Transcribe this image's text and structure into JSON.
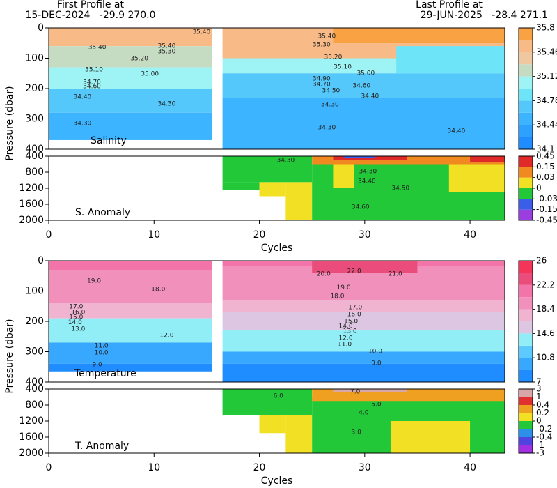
{
  "header": {
    "first_label": "First Profile at",
    "first_info": "15-DEC-2024   -29.9 270.0",
    "last_label": "Last Profile at",
    "last_info": "29-JUN-2025   -28.4 271.1"
  },
  "chart_data": [
    {
      "type": "heatmap",
      "label": "Salinity",
      "ylabel": "Pressure (dbar)",
      "xlim": [
        0,
        43.3
      ],
      "ylim": [
        0,
        400
      ],
      "yticks": [
        0,
        100,
        200,
        300,
        400
      ],
      "colorbar": {
        "levels": [
          34.1,
          34.27,
          34.44,
          34.61,
          34.78,
          34.95,
          35.12,
          35.29,
          35.46,
          35.63,
          35.8
        ],
        "colors": [
          "#1f8cff",
          "#2ea0ff",
          "#3db4ff",
          "#55c8fb",
          "#6ee4f8",
          "#9ef4f4",
          "#c6dcc2",
          "#efc8a2",
          "#f8ba86",
          "#f8a244"
        ],
        "ticks": [
          35.8,
          35.46,
          35.12,
          34.78,
          34.44,
          34.1
        ]
      },
      "cells": [
        {
          "x": [
            0,
            15.5
          ],
          "p": [
            0,
            60
          ],
          "value": 35.5
        },
        {
          "x": [
            0,
            15.5
          ],
          "p": [
            60,
            130
          ],
          "value": 35.2
        },
        {
          "x": [
            0,
            15.5
          ],
          "p": [
            130,
            200
          ],
          "value": 35.0
        },
        {
          "x": [
            0,
            15.5
          ],
          "p": [
            200,
            280
          ],
          "value": 34.7
        },
        {
          "x": [
            0,
            15.5
          ],
          "p": [
            280,
            370
          ],
          "value": 34.5
        },
        {
          "x": [
            16.5,
            43.3
          ],
          "p": [
            0,
            100
          ],
          "value": 35.5
        },
        {
          "x": [
            16.5,
            43.3
          ],
          "p": [
            100,
            150
          ],
          "value": 35.0
        },
        {
          "x": [
            16.5,
            43.3
          ],
          "p": [
            150,
            230
          ],
          "value": 34.7
        },
        {
          "x": [
            16.5,
            43.3
          ],
          "p": [
            230,
            400
          ],
          "value": 34.5
        },
        {
          "x": [
            33,
            43.3
          ],
          "p": [
            60,
            150
          ],
          "value": 34.9
        },
        {
          "x": [
            27,
            43.3
          ],
          "p": [
            0,
            50
          ],
          "value": 35.7
        }
      ],
      "annotations": [
        {
          "text": "35.40",
          "x": 14.5,
          "y": 14
        },
        {
          "text": "35.40",
          "x": 4.6,
          "y": 64
        },
        {
          "text": "35.40",
          "x": 11.2,
          "y": 60
        },
        {
          "text": "35.30",
          "x": 11.2,
          "y": 78
        },
        {
          "text": "35.20",
          "x": 8.6,
          "y": 101
        },
        {
          "text": "35.10",
          "x": 4.3,
          "y": 138
        },
        {
          "text": "35.00",
          "x": 9.6,
          "y": 152
        },
        {
          "text": "34.70",
          "x": 4.1,
          "y": 179
        },
        {
          "text": "34.60",
          "x": 4.1,
          "y": 193
        },
        {
          "text": "34.40",
          "x": 3.2,
          "y": 228
        },
        {
          "text": "34.30",
          "x": 11.2,
          "y": 251
        },
        {
          "text": "34.30",
          "x": 3.2,
          "y": 315
        },
        {
          "text": "35.40",
          "x": 26.4,
          "y": 28
        },
        {
          "text": "35.30",
          "x": 25.9,
          "y": 55
        },
        {
          "text": "35.20",
          "x": 27,
          "y": 97
        },
        {
          "text": "35.10",
          "x": 27.9,
          "y": 129
        },
        {
          "text": "35.00",
          "x": 30.1,
          "y": 149
        },
        {
          "text": "34.90",
          "x": 25.9,
          "y": 168
        },
        {
          "text": "34.70",
          "x": 25.9,
          "y": 186
        },
        {
          "text": "34.60",
          "x": 29.7,
          "y": 191
        },
        {
          "text": "34.50",
          "x": 26.8,
          "y": 207
        },
        {
          "text": "34.40",
          "x": 30.5,
          "y": 225
        },
        {
          "text": "34.30",
          "x": 26.7,
          "y": 253
        },
        {
          "text": "34.30",
          "x": 26.4,
          "y": 329
        },
        {
          "text": "34.40",
          "x": 38.7,
          "y": 340
        }
      ]
    },
    {
      "type": "heatmap",
      "label": "S. Anomaly",
      "xlabel": "Cycles",
      "xlim": [
        0,
        43.3
      ],
      "ylim": [
        400,
        2000
      ],
      "yticks": [
        400,
        800,
        1200,
        1600,
        2000
      ],
      "xticks": [
        0,
        10,
        20,
        30,
        40
      ],
      "colorbar": {
        "levels": [
          -0.45,
          -0.15,
          -0.03,
          0,
          0.03,
          0.15,
          0.45
        ],
        "colors": [
          "#9a3ee0",
          "#3a5ee8",
          "#22c838",
          "#f2e024",
          "#f08a20",
          "#e02a2a"
        ],
        "ticks": [
          0.45,
          0.15,
          0.03,
          0,
          -0.03,
          -0.15,
          -0.45
        ]
      },
      "cells": [
        {
          "x": [
            16.5,
            25
          ],
          "p": [
            400,
            1050
          ],
          "value": -0.01
        },
        {
          "x": [
            16.5,
            20
          ],
          "p": [
            1050,
            1250
          ],
          "value": -0.01
        },
        {
          "x": [
            20,
            22.5
          ],
          "p": [
            1050,
            1400
          ],
          "value": 0.01
        },
        {
          "x": [
            22.5,
            25
          ],
          "p": [
            1050,
            2000
          ],
          "value": 0.01
        },
        {
          "x": [
            25,
            43.3
          ],
          "p": [
            600,
            2000
          ],
          "value": -0.01
        },
        {
          "x": [
            27,
            29
          ],
          "p": [
            600,
            1200
          ],
          "value": 0.01
        },
        {
          "x": [
            38,
            43.3
          ],
          "p": [
            600,
            1300
          ],
          "value": 0.01
        },
        {
          "x": [
            25,
            43.3
          ],
          "p": [
            400,
            600
          ],
          "value": 0.05
        },
        {
          "x": [
            27,
            34
          ],
          "p": [
            400,
            500
          ],
          "value": 0.2
        },
        {
          "x": [
            40,
            43.3
          ],
          "p": [
            400,
            550
          ],
          "value": 0.2
        },
        {
          "x": [
            28,
            31
          ],
          "p": [
            400,
            450
          ],
          "value": -0.1
        }
      ],
      "annotations": [
        {
          "text": "34.30",
          "x": 22.5,
          "y": 504
        },
        {
          "text": "34.30",
          "x": 30.3,
          "y": 783
        },
        {
          "text": "34.40",
          "x": 30.2,
          "y": 1026
        },
        {
          "text": "34.50",
          "x": 33.4,
          "y": 1200
        },
        {
          "text": "34.60",
          "x": 29.6,
          "y": 1670
        }
      ]
    },
    {
      "type": "heatmap",
      "label": "Temperature",
      "ylabel": "Pressure (dbar)",
      "xlim": [
        0,
        43.3
      ],
      "ylim": [
        0,
        400
      ],
      "yticks": [
        0,
        100,
        200,
        300,
        400
      ],
      "colorbar": {
        "levels": [
          7,
          8.9,
          10.8,
          12.7,
          14.6,
          16.5,
          18.4,
          20.3,
          22.2,
          24.1,
          26
        ],
        "colors": [
          "#1f8cff",
          "#38a8ff",
          "#5ccaff",
          "#92eef6",
          "#dcc6e2",
          "#f0b4d0",
          "#f290bc",
          "#f274a8",
          "#ea4c7c",
          "#f43458"
        ],
        "ticks": [
          26,
          22.2,
          18.4,
          14.6,
          10.8,
          7
        ]
      },
      "cells": [
        {
          "x": [
            0,
            15.5
          ],
          "p": [
            0,
            30
          ],
          "value": 21
        },
        {
          "x": [
            0,
            15.5
          ],
          "p": [
            30,
            140
          ],
          "value": 19.5
        },
        {
          "x": [
            0,
            15.5
          ],
          "p": [
            140,
            190
          ],
          "value": 17
        },
        {
          "x": [
            0,
            15.5
          ],
          "p": [
            190,
            270
          ],
          "value": 13.5
        },
        {
          "x": [
            0,
            15.5
          ],
          "p": [
            270,
            340
          ],
          "value": 10
        },
        {
          "x": [
            0,
            15.5
          ],
          "p": [
            340,
            365
          ],
          "value": 8
        },
        {
          "x": [
            16.5,
            43.3
          ],
          "p": [
            0,
            20
          ],
          "value": 21
        },
        {
          "x": [
            16.5,
            43.3
          ],
          "p": [
            20,
            130
          ],
          "value": 19.5
        },
        {
          "x": [
            16.5,
            43.3
          ],
          "p": [
            130,
            170
          ],
          "value": 17
        },
        {
          "x": [
            16.5,
            43.3
          ],
          "p": [
            170,
            230
          ],
          "value": 15.5
        },
        {
          "x": [
            16.5,
            43.3
          ],
          "p": [
            230,
            300
          ],
          "value": 13
        },
        {
          "x": [
            16.5,
            43.3
          ],
          "p": [
            300,
            340
          ],
          "value": 10
        },
        {
          "x": [
            16.5,
            43.3
          ],
          "p": [
            340,
            400
          ],
          "value": 8
        },
        {
          "x": [
            25,
            35
          ],
          "p": [
            0,
            40
          ],
          "value": 23
        }
      ],
      "annotations": [
        {
          "text": "19.0",
          "x": 4.3,
          "y": 67
        },
        {
          "text": "18.0",
          "x": 10.4,
          "y": 94
        },
        {
          "text": "17.0",
          "x": 2.6,
          "y": 152
        },
        {
          "text": "16.0",
          "x": 2.8,
          "y": 170
        },
        {
          "text": "15.0",
          "x": 2.6,
          "y": 186
        },
        {
          "text": "14.0",
          "x": 2.5,
          "y": 204
        },
        {
          "text": "13.0",
          "x": 2.8,
          "y": 225
        },
        {
          "text": "12.0",
          "x": 11.2,
          "y": 246
        },
        {
          "text": "11.0",
          "x": 5,
          "y": 280
        },
        {
          "text": "10.0",
          "x": 5,
          "y": 303
        },
        {
          "text": "9.0",
          "x": 4.6,
          "y": 342
        },
        {
          "text": "22.0",
          "x": 29,
          "y": 34
        },
        {
          "text": "21.0",
          "x": 32.9,
          "y": 44
        },
        {
          "text": "20.0",
          "x": 26.1,
          "y": 44
        },
        {
          "text": "19.0",
          "x": 28,
          "y": 88
        },
        {
          "text": "18.0",
          "x": 27.4,
          "y": 117
        },
        {
          "text": "17.0",
          "x": 29.1,
          "y": 154
        },
        {
          "text": "16.0",
          "x": 29,
          "y": 177
        },
        {
          "text": "15.0",
          "x": 28.7,
          "y": 200
        },
        {
          "text": "14.0",
          "x": 28.2,
          "y": 216
        },
        {
          "text": "13.0",
          "x": 28.6,
          "y": 232
        },
        {
          "text": "12.0",
          "x": 28.2,
          "y": 255
        },
        {
          "text": "11.0",
          "x": 28.1,
          "y": 276
        },
        {
          "text": "10.0",
          "x": 31,
          "y": 299
        },
        {
          "text": "9.0",
          "x": 31.1,
          "y": 338
        }
      ]
    },
    {
      "type": "heatmap",
      "label": "T. Anomaly",
      "xlabel": "Cycles",
      "xlim": [
        0,
        43.3
      ],
      "ylim": [
        400,
        2000
      ],
      "yticks": [
        400,
        800,
        1200,
        1600,
        2000
      ],
      "xticks": [
        0,
        10,
        20,
        30,
        40
      ],
      "colorbar": {
        "levels": [
          -3,
          -1,
          -0.4,
          -0.2,
          0,
          0.2,
          0.4,
          1,
          3
        ],
        "colors": [
          "#a030e0",
          "#5044e0",
          "#2c90e8",
          "#22c838",
          "#f2e024",
          "#f0a020",
          "#e03030",
          "#d8a8a8"
        ],
        "ticks": [
          3,
          1,
          0.4,
          0.2,
          0,
          -0.2,
          -0.4,
          -1,
          -3
        ]
      },
      "cells": [
        {
          "x": [
            16.5,
            25
          ],
          "p": [
            400,
            1050
          ],
          "value": -0.1
        },
        {
          "x": [
            20,
            22.5
          ],
          "p": [
            1050,
            1500
          ],
          "value": 0.1
        },
        {
          "x": [
            22.5,
            25
          ],
          "p": [
            1050,
            2000
          ],
          "value": 0.1
        },
        {
          "x": [
            25,
            43.3
          ],
          "p": [
            600,
            2000
          ],
          "value": -0.1
        },
        {
          "x": [
            32.5,
            40
          ],
          "p": [
            1200,
            2000
          ],
          "value": 0.1
        },
        {
          "x": [
            25,
            43.3
          ],
          "p": [
            400,
            700
          ],
          "value": 0.3
        },
        {
          "x": [
            27,
            34
          ],
          "p": [
            400,
            480
          ],
          "value": 2
        }
      ],
      "annotations": [
        {
          "text": "6.0",
          "x": 21.8,
          "y": 574
        },
        {
          "text": "7.0",
          "x": 29.1,
          "y": 470
        },
        {
          "text": "5.0",
          "x": 31.1,
          "y": 783
        },
        {
          "text": "4.0",
          "x": 29.9,
          "y": 991
        },
        {
          "text": "3.0",
          "x": 29.2,
          "y": 1478
        }
      ]
    }
  ]
}
